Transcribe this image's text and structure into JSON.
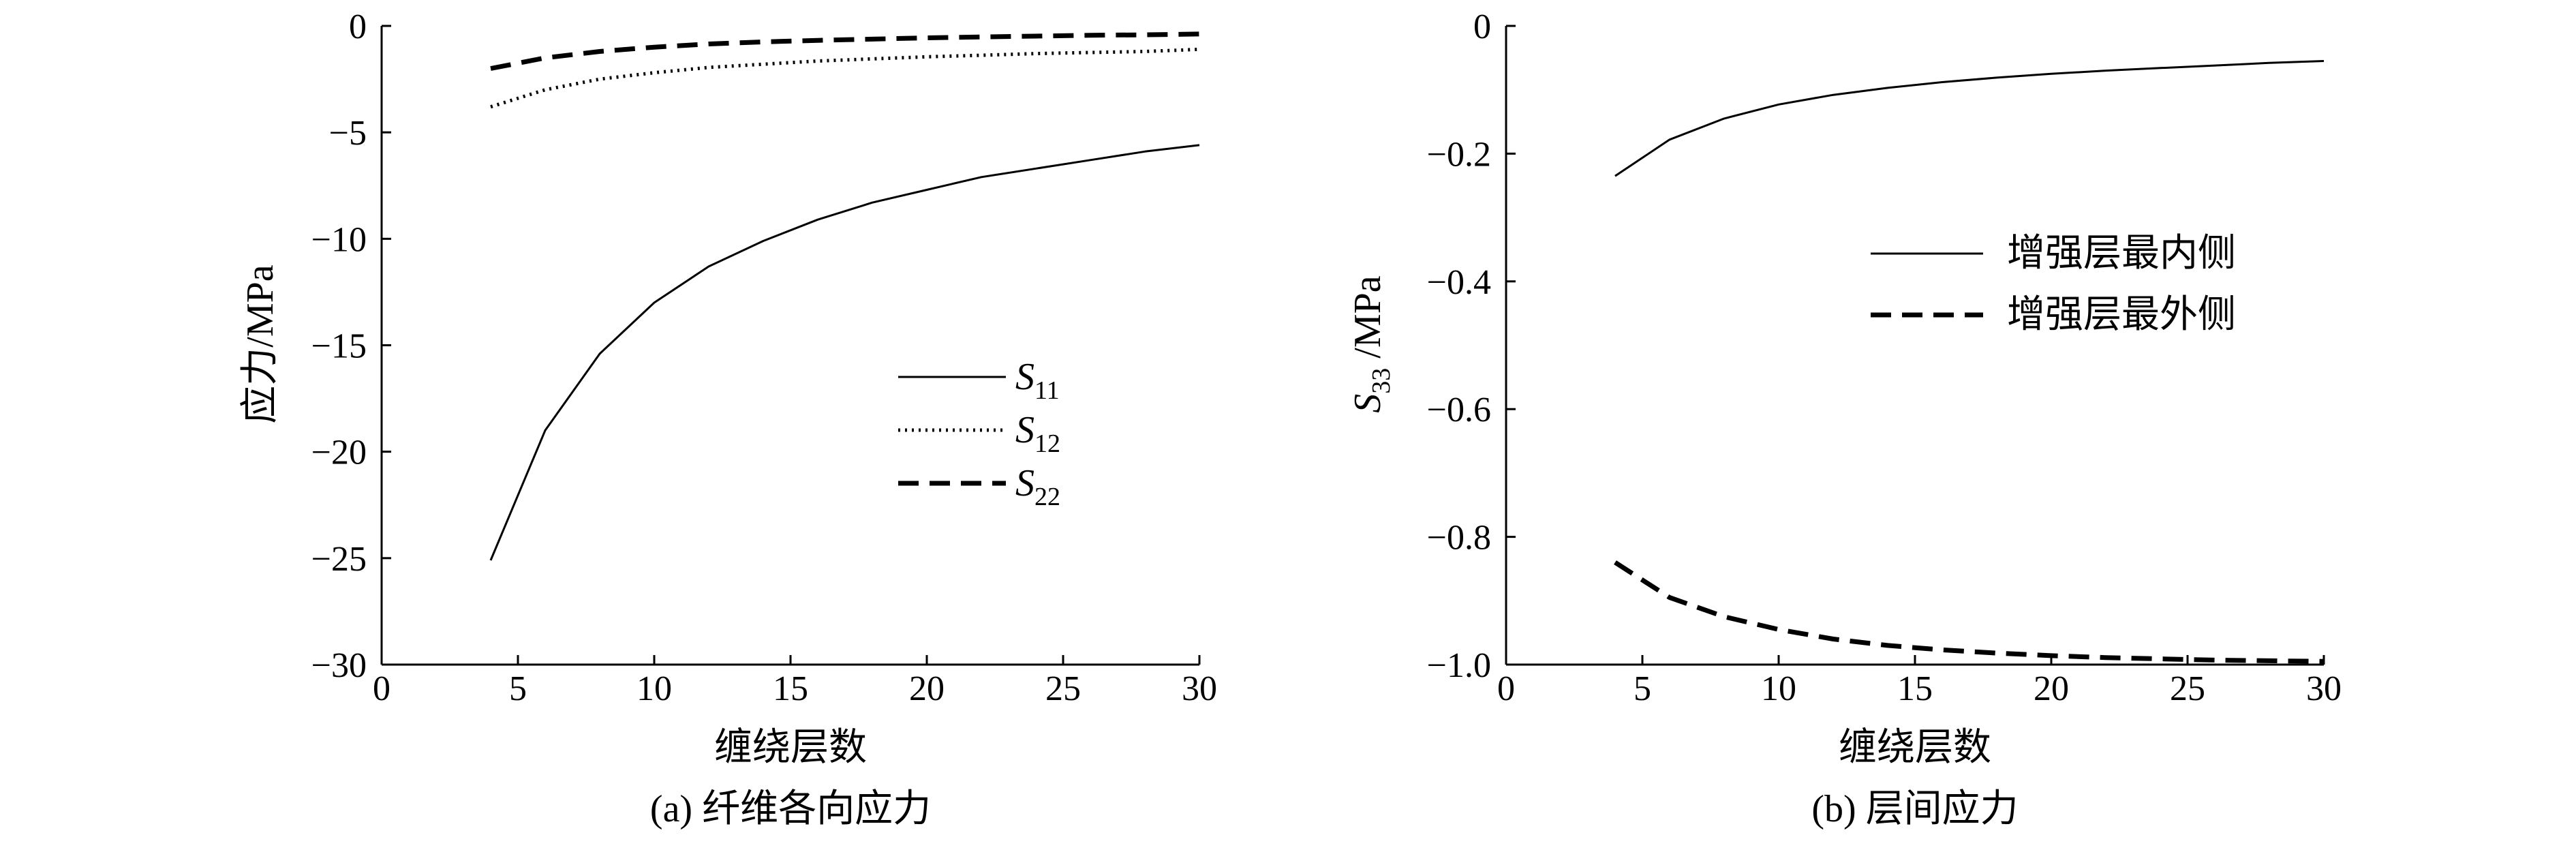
{
  "chart_data": [
    {
      "type": "line",
      "caption": "(a) 纤维各向应力",
      "xlabel": "缠绕层数",
      "ylabel": "应力/MPa",
      "xlim": [
        0,
        30
      ],
      "ylim": [
        -30,
        0
      ],
      "xticks": [
        0,
        5,
        10,
        15,
        20,
        25,
        30
      ],
      "yticks": [
        0,
        -5,
        -10,
        -15,
        -20,
        -25,
        -30
      ],
      "legend_position": "lower-right",
      "x": [
        4,
        6,
        8,
        10,
        12,
        14,
        16,
        18,
        20,
        22,
        24,
        26,
        28,
        30
      ],
      "series": [
        {
          "name": "S",
          "subscript": "11",
          "style": "solid",
          "values": [
            -25.1,
            -19.0,
            -15.4,
            -13.0,
            -11.3,
            -10.1,
            -9.1,
            -8.3,
            -7.7,
            -7.1,
            -6.7,
            -6.3,
            -5.9,
            -5.6
          ]
        },
        {
          "name": "S",
          "subscript": "12",
          "style": "dotted",
          "values": [
            -3.8,
            -3.0,
            -2.5,
            -2.2,
            -1.95,
            -1.8,
            -1.65,
            -1.55,
            -1.45,
            -1.38,
            -1.3,
            -1.25,
            -1.2,
            -1.1
          ]
        },
        {
          "name": "S",
          "subscript": "22",
          "style": "dashed",
          "values": [
            -2.0,
            -1.5,
            -1.2,
            -1.0,
            -0.85,
            -0.75,
            -0.68,
            -0.62,
            -0.56,
            -0.52,
            -0.48,
            -0.44,
            -0.42,
            -0.38
          ]
        }
      ]
    },
    {
      "type": "line",
      "caption": "(b) 层间应力",
      "xlabel": "缠绕层数",
      "ylabel_main": "S",
      "ylabel_sub": "33",
      "ylabel_unit": " /MPa",
      "xlim": [
        0,
        30
      ],
      "ylim": [
        -1.0,
        0
      ],
      "xticks": [
        0,
        5,
        10,
        15,
        20,
        25,
        30
      ],
      "yticks": [
        0,
        -0.2,
        -0.4,
        -0.6,
        -0.8,
        -1.0
      ],
      "ytick_labels": [
        "0",
        "−0.2",
        "−0.4",
        "−0.6",
        "−0.8",
        "−1.0"
      ],
      "legend_position": "upper-right",
      "x": [
        4,
        6,
        8,
        10,
        12,
        14,
        16,
        18,
        20,
        22,
        24,
        26,
        28,
        30
      ],
      "series": [
        {
          "name": "增强层最内侧",
          "style": "solid",
          "values": [
            -0.235,
            -0.178,
            -0.145,
            -0.123,
            -0.108,
            -0.097,
            -0.088,
            -0.081,
            -0.075,
            -0.07,
            -0.066,
            -0.062,
            -0.058,
            -0.055
          ]
        },
        {
          "name": "增强层最外侧",
          "style": "dashed",
          "values": [
            -0.84,
            -0.895,
            -0.925,
            -0.945,
            -0.96,
            -0.97,
            -0.977,
            -0.982,
            -0.986,
            -0.989,
            -0.991,
            -0.993,
            -0.994,
            -0.995
          ]
        }
      ]
    }
  ]
}
